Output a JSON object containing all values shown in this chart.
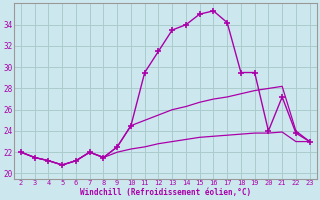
{
  "title": "",
  "xlabel": "Windchill (Refroidissement éolien,°C)",
  "background_color": "#cce8ee",
  "grid_color": "#aacccc",
  "line_color": "#aa00aa",
  "hours": [
    2,
    3,
    4,
    5,
    6,
    7,
    8,
    9,
    10,
    11,
    12,
    13,
    14,
    15,
    16,
    17,
    18,
    19,
    20,
    21,
    22,
    23
  ],
  "windchill": [
    22.0,
    21.5,
    21.2,
    20.8,
    21.2,
    22.0,
    21.5,
    22.5,
    24.5,
    29.5,
    31.5,
    33.5,
    34.0,
    35.0,
    35.3,
    34.2,
    29.5,
    29.5,
    24.0,
    27.2,
    23.8,
    23.0
  ],
  "line_upper": [
    22.0,
    21.5,
    21.2,
    20.8,
    21.2,
    22.0,
    21.5,
    22.5,
    24.5,
    25.0,
    25.5,
    26.0,
    26.3,
    26.7,
    27.0,
    27.2,
    27.5,
    27.8,
    28.0,
    28.2,
    24.0,
    23.0
  ],
  "line_lower": [
    22.0,
    21.5,
    21.2,
    20.8,
    21.2,
    22.0,
    21.5,
    22.0,
    22.3,
    22.5,
    22.8,
    23.0,
    23.2,
    23.4,
    23.5,
    23.6,
    23.7,
    23.8,
    23.8,
    23.9,
    23.0,
    23.0
  ],
  "ylim": [
    19.5,
    36.0
  ],
  "yticks": [
    20,
    22,
    24,
    26,
    28,
    30,
    32,
    34
  ],
  "xlim": [
    1.5,
    23.5
  ],
  "xticks": [
    2,
    3,
    4,
    5,
    6,
    7,
    8,
    9,
    10,
    11,
    12,
    13,
    14,
    15,
    16,
    17,
    18,
    19,
    20,
    21,
    22,
    23
  ]
}
